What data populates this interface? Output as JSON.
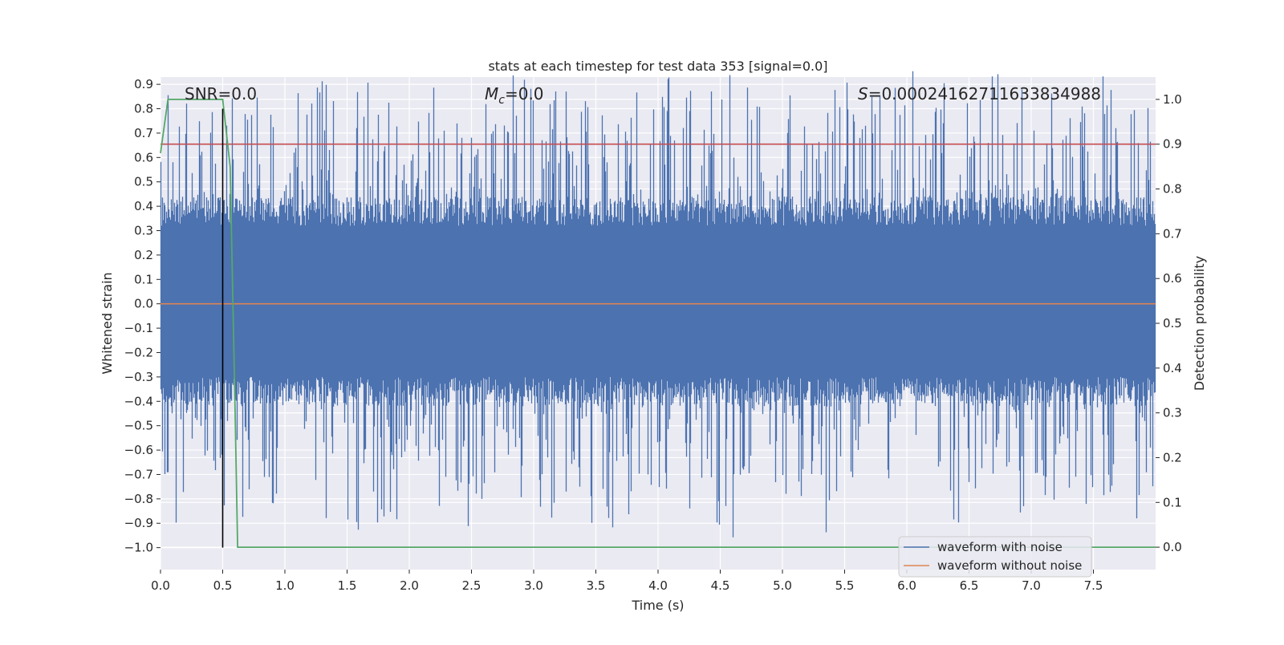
{
  "chart_data": {
    "type": "line",
    "title": "stats at each timestep for test data 353 [signal=0.0]",
    "xlabel": "Time (s)",
    "ylabel": "Whitened strain",
    "y2label": "Detection probability",
    "xlim": [
      0.0,
      8.0
    ],
    "ylim": [
      -1.09,
      0.93
    ],
    "y2lim": [
      -0.05,
      1.05
    ],
    "xticks": [
      0.0,
      0.5,
      1.0,
      1.5,
      2.0,
      2.5,
      3.0,
      3.5,
      4.0,
      4.5,
      5.0,
      5.5,
      6.0,
      6.5,
      7.0,
      7.5
    ],
    "yticks": [
      0.9,
      0.8,
      0.7,
      0.6,
      0.5,
      0.4,
      0.3,
      0.2,
      0.1,
      0.0,
      -0.1,
      -0.2,
      -0.3,
      -0.4,
      -0.5,
      -0.6,
      -0.7,
      -0.8,
      -0.9,
      -1.0
    ],
    "y2ticks": [
      1.0,
      0.9,
      0.8,
      0.7,
      0.6,
      0.5,
      0.4,
      0.3,
      0.2,
      0.1,
      0.0
    ],
    "grid": true,
    "legend_position": "lower-right",
    "annotations": {
      "snr": "SNR=0.0",
      "mc_symbol": "M",
      "mc_sub": "c",
      "mc_value": "=0.0",
      "s_symbol": "S",
      "s_value": "=0.00024162711633834988"
    },
    "series": [
      {
        "name": "waveform with noise",
        "color": "#4c72b0",
        "axis": "left",
        "kind": "noise",
        "band_typical": [
          -0.3,
          0.32
        ],
        "band_extreme": [
          -0.86,
          0.86
        ]
      },
      {
        "name": "waveform without noise",
        "color": "#dd8452",
        "axis": "left",
        "x": [
          0.0,
          8.0
        ],
        "y": [
          0.0,
          0.0
        ]
      },
      {
        "color": "#55a868",
        "axis": "right",
        "x": [
          0.0,
          0.06,
          0.12,
          0.25,
          0.5,
          0.56,
          0.6,
          0.62,
          8.0
        ],
        "y": [
          0.88,
          1.0,
          1.0,
          1.0,
          1.0,
          0.85,
          0.3,
          0.0,
          0.0
        ]
      }
    ],
    "threshold": {
      "color": "#c44e52",
      "axis": "right",
      "value": 0.9
    },
    "marker_line": {
      "color": "#000000",
      "x": 0.5,
      "y": [
        -1.0,
        0.8
      ]
    }
  }
}
